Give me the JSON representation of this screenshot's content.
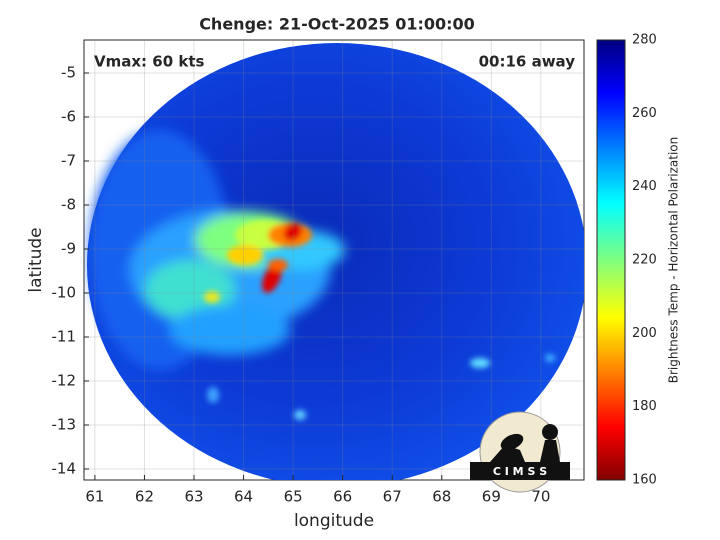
{
  "chart_data": {
    "type": "image",
    "title": "Chenge: 21-Oct-2025 01:00:00",
    "annotations": [
      "Vmax: 60 kts",
      "00:16 away"
    ],
    "x_label": "longitude",
    "y_label": "latitude",
    "xlim": [
      60.78,
      70.87
    ],
    "xticks": [
      61,
      62,
      63,
      64,
      65,
      66,
      67,
      68,
      69,
      70
    ],
    "ylim": [
      -14.25,
      -4.25
    ],
    "yticks": [
      -14,
      -13,
      -12,
      -11,
      -10,
      -9,
      -8,
      -7,
      -6,
      -5
    ],
    "grid": true,
    "colorbar": {
      "label": "Brightness Temp - Horizontal Polarization",
      "lim": [
        160,
        280
      ],
      "ticks": [
        160,
        180,
        200,
        220,
        240,
        260,
        280
      ]
    },
    "logo_text": "C I M S S"
  }
}
